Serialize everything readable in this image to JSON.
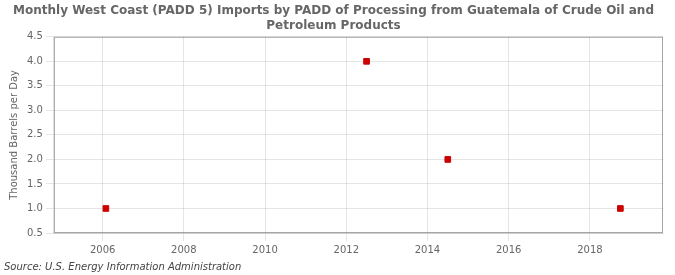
{
  "chart_data": {
    "type": "scatter",
    "title": "Monthly West Coast (PADD 5) Imports by PADD of Processing from Guatemala of Crude Oil and\nPetroleum Products",
    "ylabel": "Thousand Barrels per Day",
    "annotation": "Source: U.S. Energy Information Administration",
    "x": [
      2006.08,
      2012.5,
      2014.5,
      2018.75
    ],
    "values": [
      1.0,
      4.0,
      2.0,
      1.0
    ],
    "color": "#cc0000",
    "marker": "square",
    "xlim": [
      2004.8,
      2019.8
    ],
    "ylim": [
      0.5,
      4.5
    ],
    "xticks": [
      2006,
      2008,
      2010,
      2012,
      2014,
      2016,
      2018
    ],
    "yticks": [
      0.5,
      {
        "value": 1.0,
        "label": "1.0"
      },
      1.5,
      {
        "value": 2.0,
        "label": "2.0"
      },
      2.5,
      {
        "value": 3.0,
        "label": "3.0"
      },
      3.5,
      {
        "value": 4.0,
        "label": "4.0"
      },
      4.5
    ],
    "grid": true
  }
}
